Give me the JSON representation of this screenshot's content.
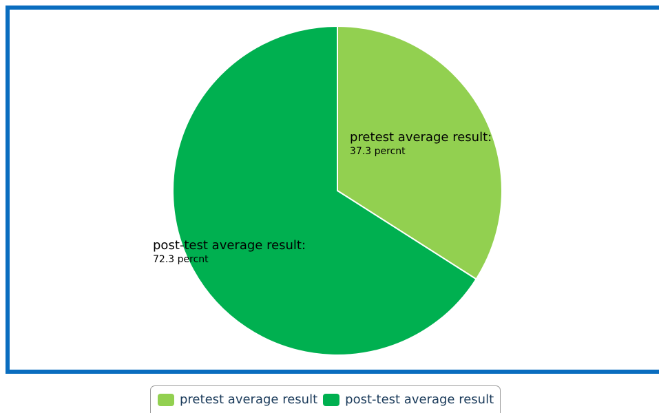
{
  "chart_data": {
    "type": "pie",
    "slices": [
      {
        "label": "pretest average result",
        "value": 37.3,
        "display": "37.3 percnt",
        "color": "#92d050"
      },
      {
        "label": "post-test average result",
        "value": 72.3,
        "display": "72.3 percnt",
        "color": "#00b050"
      }
    ]
  },
  "labels": {
    "pre_name": "pretest average result:",
    "pre_value": "37.3 percnt",
    "post_name": "post-test average result:",
    "post_value": "72.3 percnt"
  },
  "legend": {
    "items": [
      {
        "label": "pretest average result",
        "color": "#92d050"
      },
      {
        "label": "post-test average result",
        "color": "#00b050"
      }
    ]
  },
  "colors": {
    "frame_border": "#0a6dbf",
    "slice_border": "#ffffff"
  }
}
